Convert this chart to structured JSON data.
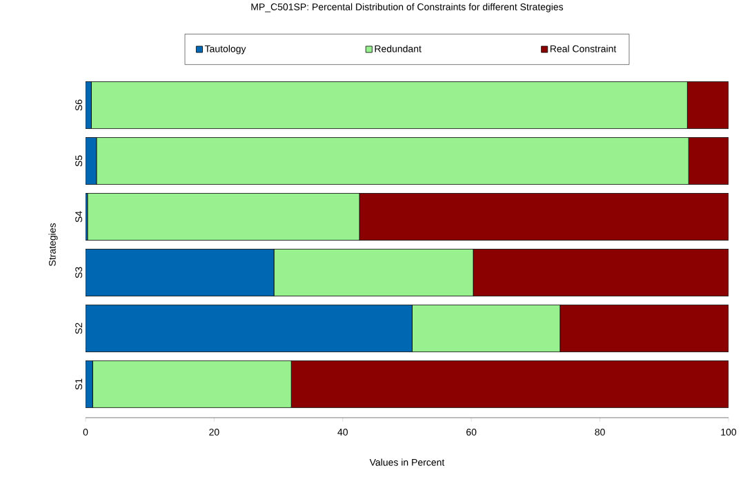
{
  "chart_data": {
    "type": "bar",
    "orientation": "horizontal",
    "stacked": true,
    "title": "MP_C501SP: Percental Distribution of Constraints for different Strategies",
    "xlabel": "Values in Percent",
    "ylabel": "Strategies",
    "categories": [
      "S6",
      "S5",
      "S4",
      "S3",
      "S2",
      "S1"
    ],
    "series": [
      {
        "name": "Tautology",
        "color": "#0068b2",
        "values": [
          0.9,
          1.7,
          0.3,
          29.3,
          50.8,
          1.1
        ]
      },
      {
        "name": "Redundant",
        "color": "#98f08f",
        "values": [
          92.7,
          92.1,
          42.3,
          31.0,
          23.0,
          30.9
        ]
      },
      {
        "name": "Real Constraint",
        "color": "#8b0000",
        "values": [
          6.4,
          6.2,
          57.4,
          39.7,
          26.2,
          68.0
        ]
      }
    ],
    "xlim": [
      0,
      100
    ],
    "xticks": [
      0,
      20,
      40,
      60,
      80,
      100
    ],
    "legend": "top"
  }
}
